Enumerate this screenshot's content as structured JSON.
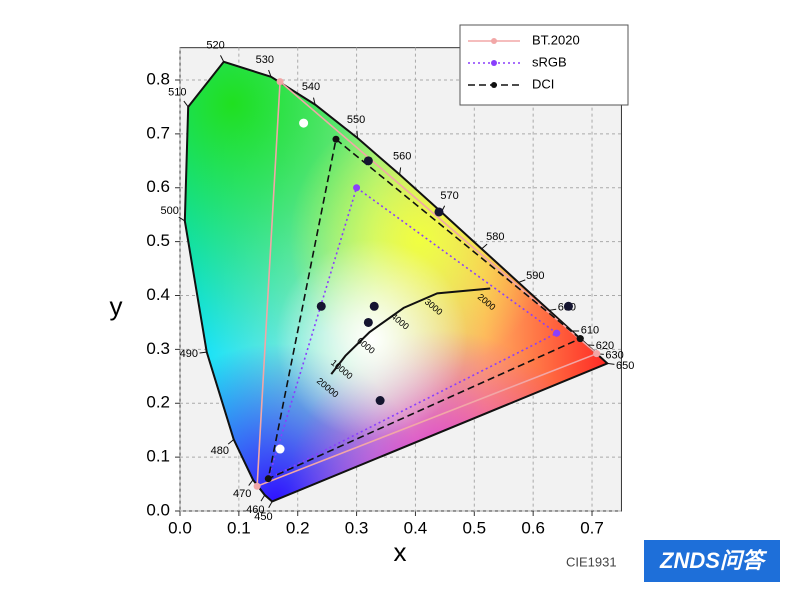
{
  "chart_data": {
    "type": "chromaticity",
    "x_label": "x",
    "y_label": "y",
    "xlim": [
      0,
      0.75
    ],
    "ylim": [
      0,
      0.86
    ],
    "xticks": [
      {
        "value": 0,
        "label": "0.0"
      },
      0.1,
      0.2,
      0.3,
      0.4,
      0.5,
      0.6,
      0.7
    ],
    "yticks": [
      {
        "value": 0,
        "label": "0.0"
      },
      0.1,
      0.2,
      0.3,
      0.4,
      0.5,
      0.6,
      0.7,
      0.8
    ],
    "grid": true,
    "legend": "top-right",
    "spectral_locus": {
      "wavelengths": [
        "450",
        "460",
        "470",
        "480",
        "490",
        "500",
        "510",
        "520",
        "530",
        "540",
        "550",
        "560",
        "570",
        "580",
        "590",
        "600",
        "610",
        "620",
        "630",
        "650"
      ],
      "x": [
        0.1566,
        0.144,
        0.1241,
        0.0913,
        0.0454,
        0.0082,
        0.0139,
        0.0743,
        0.1547,
        0.2296,
        0.3016,
        0.3731,
        0.4441,
        0.5125,
        0.5752,
        0.627,
        0.6658,
        0.6915,
        0.7079,
        0.726
      ],
      "y": [
        0.0177,
        0.0297,
        0.0578,
        0.1327,
        0.295,
        0.5384,
        0.7502,
        0.8338,
        0.8059,
        0.7543,
        0.6923,
        0.6245,
        0.5547,
        0.4866,
        0.4242,
        0.3725,
        0.334,
        0.3083,
        0.292,
        0.274
      ]
    },
    "planckian_locus": {
      "labels": [
        "2000",
        "3000",
        "4000",
        "6000",
        "10000",
        "20000"
      ],
      "x": [
        0.527,
        0.437,
        0.38,
        0.322,
        0.281,
        0.257
      ],
      "y": [
        0.413,
        0.404,
        0.377,
        0.332,
        0.288,
        0.254
      ]
    },
    "series": [
      {
        "name": "BT.2020",
        "color": "#f2a7a7",
        "line_style": "solid",
        "x": [
          0.708,
          0.17,
          0.131,
          0.708
        ],
        "y": [
          0.292,
          0.797,
          0.046,
          0.292
        ]
      },
      {
        "name": "sRGB",
        "color": "#8a3ffc",
        "line_style": "dotted",
        "x": [
          0.64,
          0.3,
          0.15,
          0.64
        ],
        "y": [
          0.33,
          0.6,
          0.06,
          0.33
        ]
      },
      {
        "name": "DCI",
        "color": "#111111",
        "line_style": "dashed",
        "x": [
          0.68,
          0.265,
          0.15,
          0.68
        ],
        "y": [
          0.32,
          0.69,
          0.06,
          0.32
        ]
      }
    ],
    "black_points": {
      "x": [
        0.32,
        0.44,
        0.24,
        0.33,
        0.34,
        0.66,
        0.32
      ],
      "y": [
        0.65,
        0.555,
        0.38,
        0.38,
        0.205,
        0.38,
        0.35
      ]
    },
    "white_points": {
      "x": [
        0.21,
        0.17
      ],
      "y": [
        0.72,
        0.115
      ]
    },
    "caption": "CIE1931",
    "watermark": "ZNDS问答"
  }
}
